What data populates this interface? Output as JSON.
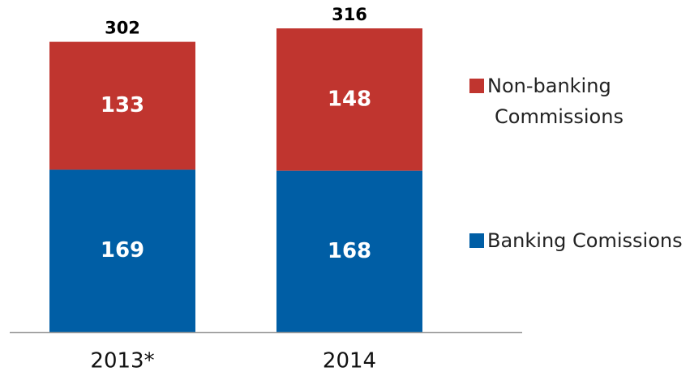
{
  "chart_data": {
    "type": "stacked_bar",
    "categories": [
      "2013*",
      "2014"
    ],
    "series": [
      {
        "name": "Banking Comissions",
        "color": "#005ea5",
        "values": [
          169,
          168
        ]
      },
      {
        "name": "Non-banking Commissions",
        "color": "#c0352f",
        "values": [
          133,
          148
        ]
      }
    ],
    "totals": [
      302,
      316
    ]
  }
}
